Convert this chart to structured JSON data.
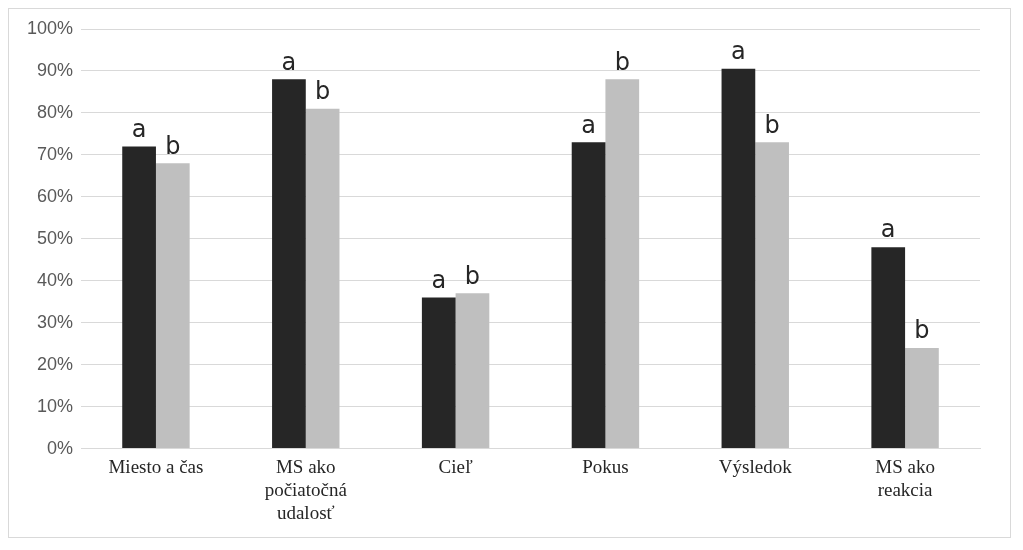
{
  "chart_data": {
    "type": "bar",
    "categories": [
      "Miesto a čas",
      "MS ako počiatočná udalosť",
      "Cieľ",
      "Pokus",
      "Výsledok",
      "MS ako reakcia"
    ],
    "series": [
      {
        "color": "#262626",
        "values": [
          72,
          88,
          36,
          73,
          90.5,
          48
        ]
      },
      {
        "color": "#bfbfbf",
        "values": [
          68,
          81,
          37,
          88,
          73,
          24
        ]
      }
    ],
    "ylim": [
      0,
      100
    ],
    "yticks": [
      {
        "value": 0,
        "label": "0%"
      },
      {
        "value": 10,
        "label": "10%"
      },
      {
        "value": 20,
        "label": "20%"
      },
      {
        "value": 30,
        "label": "30%"
      },
      {
        "value": 40,
        "label": "40%"
      },
      {
        "value": 50,
        "label": "50%"
      },
      {
        "value": 60,
        "label": "60%"
      },
      {
        "value": 70,
        "label": "70%"
      },
      {
        "value": 80,
        "label": "80%"
      },
      {
        "value": 90,
        "label": "90%"
      },
      {
        "value": 100,
        "label": "100%"
      }
    ],
    "grid": "y",
    "legend": false,
    "annotations": [
      {
        "text": "a",
        "x": "Miesto a čas",
        "y": 72
      },
      {
        "text": "b",
        "x": "Miesto a čas",
        "y": 68
      },
      {
        "text": "a",
        "x": "MS ako počiatočná udalosť",
        "y": 88
      },
      {
        "text": "b",
        "x": "MS ako počiatočná udalosť",
        "y": 81
      },
      {
        "text": "a",
        "x": "Cieľ",
        "y": 36
      },
      {
        "text": "b",
        "x": "Cieľ",
        "y": 37
      },
      {
        "text": "a",
        "x": "Pokus",
        "y": 73
      },
      {
        "text": "b",
        "x": "Pokus",
        "y": 88
      },
      {
        "text": "a",
        "x": "Výsledok",
        "y": 90.5
      },
      {
        "text": "b",
        "x": "Výsledok",
        "y": 73
      },
      {
        "text": "a",
        "x": "MS ako reakcia",
        "y": 48
      },
      {
        "text": "b",
        "x": "MS ako reakcia",
        "y": 24
      }
    ]
  }
}
